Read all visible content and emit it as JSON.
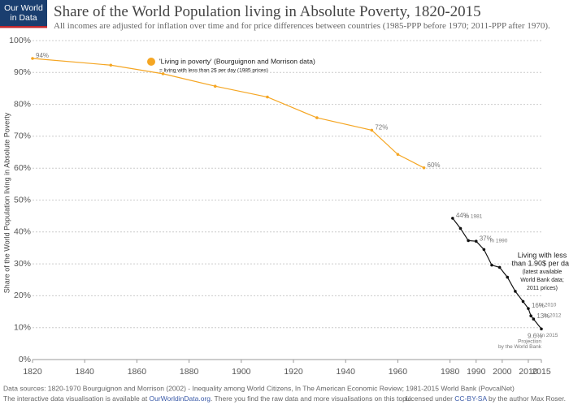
{
  "logo": [
    "Our World",
    "in Data"
  ],
  "footer": {
    "sources": "Data sources: 1820-1970 Bourguignon and Morrison (2002) - Inequality among World Citizens, In The American Economic Review; 1981-2015 World Bank (PovcalNet)",
    "note": [
      "The interactive data visualisation is available at ",
      "OurWorldinData.org",
      ". There you find the raw data and more visualisations on this topic."
    ],
    "license": [
      "Licensed under ",
      "CC-BY-SA",
      " by the author Max Roser."
    ]
  },
  "chart_data": {
    "type": "line",
    "title": "Share of the World Population living in Absolute Poverty, 1820-2015",
    "subtitle": "All incomes are adjusted for inflation over time and for price differences between countries (1985-PPP before 1970; 2011-PPP after 1970).",
    "y_label": "Share of the World Population living in Absolute Poverty",
    "legend_note": "= living with less than 2$ per day (1985 prices)",
    "xlim": [
      1820,
      2015
    ],
    "xticks": [
      1820,
      1840,
      1860,
      1880,
      1900,
      1920,
      1940,
      1960,
      1980,
      1990,
      2000,
      2010,
      2015
    ],
    "ylim": [
      0,
      100
    ],
    "yticks": [
      {
        "value": 0,
        "label": "0%"
      },
      {
        "value": 10,
        "label": "10%"
      },
      {
        "value": 20,
        "label": "20%"
      },
      {
        "value": 30,
        "label": "30%"
      },
      {
        "value": 40,
        "label": "40%"
      },
      {
        "value": 50,
        "label": "50%"
      },
      {
        "value": 60,
        "label": "60%"
      },
      {
        "value": 70,
        "label": "70%"
      },
      {
        "value": 80,
        "label": "80%"
      },
      {
        "value": 90,
        "label": "90%"
      },
      {
        "value": 100,
        "label": "100%"
      }
    ],
    "grid": true,
    "series": [
      {
        "name": "'Living in poverty' (Bourguignon and Morrison data)",
        "color": "#f5a623",
        "x": [
          1820,
          1850,
          1870,
          1890,
          1910,
          1929,
          1950,
          1960,
          1970
        ],
        "values": [
          94.4,
          92.3,
          89.6,
          85.7,
          82.3,
          75.8,
          71.9,
          64.3,
          60.1
        ],
        "value_labels": [
          "94%",
          null,
          null,
          null,
          null,
          null,
          "72%",
          null,
          "60%"
        ]
      },
      {
        "color": "#111111",
        "x": [
          1981,
          1984,
          1987,
          1990,
          1993,
          1996,
          1999,
          2002,
          2005,
          2008,
          2010,
          2011,
          2012,
          2015
        ],
        "values": [
          44.3,
          41.1,
          37.3,
          37.1,
          34.5,
          29.6,
          28.9,
          25.8,
          21.4,
          18.2,
          16.0,
          13.7,
          12.7,
          9.6
        ],
        "value_labels": [
          "44%",
          null,
          null,
          "37%",
          null,
          null,
          null,
          null,
          null,
          null,
          "16%",
          null,
          "13%",
          "9.6%"
        ]
      }
    ],
    "annotations": [
      "in 1981",
      "in 1990",
      "in 2010",
      "in 2012",
      "in 2015",
      "Projection",
      "by the World Bank"
    ],
    "box_note": [
      "Living with less",
      "than 1.90$ per day",
      "(latest available",
      "World Bank data;",
      "2011 prices)"
    ]
  }
}
